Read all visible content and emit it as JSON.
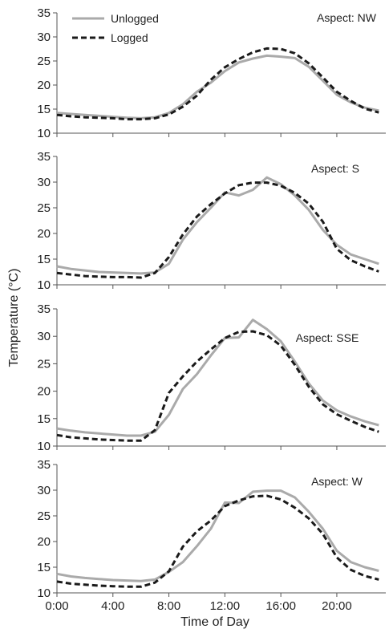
{
  "figure": {
    "ylabel": "Temperature (°C)",
    "xlabel": "Time of Day",
    "legend": {
      "placement": "top-left of first panel",
      "entries": [
        "Unlogged",
        "Logged"
      ]
    },
    "colors": {
      "Unlogged": "#aaaaaa",
      "Logged": "#1a1a1a",
      "axis": "#555555"
    }
  },
  "chart_data": [
    {
      "type": "line",
      "annotation": "Aspect:  NW",
      "ylim": [
        10,
        35
      ],
      "yticks": [
        "10",
        "15",
        "20",
        "25",
        "30",
        "35"
      ],
      "xlim": [
        0,
        23.5
      ],
      "xticks": [
        "0:00",
        "4:00",
        "8:00",
        "12:00",
        "16:00",
        "20:00"
      ],
      "x": [
        0,
        1,
        2,
        3,
        4,
        5,
        6,
        7,
        8,
        9,
        10,
        11,
        12,
        13,
        14,
        15,
        16,
        17,
        18,
        19,
        20,
        21,
        22,
        23
      ],
      "series": [
        {
          "name": "Unlogged",
          "values": [
            14.2,
            14.0,
            13.8,
            13.6,
            13.4,
            13.2,
            13.1,
            13.3,
            14.2,
            16.0,
            18.6,
            20.5,
            22.9,
            24.7,
            25.5,
            26.1,
            25.9,
            25.6,
            23.8,
            20.9,
            18.0,
            16.4,
            15.3,
            14.7
          ]
        },
        {
          "name": "Logged",
          "values": [
            13.8,
            13.5,
            13.3,
            13.2,
            13.1,
            12.9,
            12.9,
            13.1,
            13.9,
            15.5,
            17.8,
            21.1,
            23.7,
            25.4,
            26.8,
            27.6,
            27.5,
            26.6,
            24.5,
            21.6,
            18.6,
            16.7,
            15.1,
            14.3
          ]
        }
      ]
    },
    {
      "type": "line",
      "annotation": "Aspect:  S",
      "ylim": [
        10,
        35
      ],
      "yticks": [
        "10",
        "15",
        "20",
        "25",
        "30",
        "35"
      ],
      "xlim": [
        0,
        23.5
      ],
      "xticks": [
        "0:00",
        "4:00",
        "8:00",
        "12:00",
        "16:00",
        "20:00"
      ],
      "x": [
        0,
        1,
        2,
        3,
        4,
        5,
        6,
        7,
        8,
        9,
        10,
        11,
        12,
        13,
        14,
        15,
        16,
        17,
        18,
        19,
        20,
        21,
        22,
        23
      ],
      "series": [
        {
          "name": "Unlogged",
          "values": [
            13.6,
            13.1,
            12.8,
            12.5,
            12.4,
            12.3,
            12.2,
            12.4,
            14.1,
            18.8,
            22.2,
            25.0,
            28.0,
            27.4,
            28.5,
            30.9,
            29.6,
            27.4,
            24.6,
            20.7,
            17.8,
            15.9,
            15.0,
            14.1
          ]
        },
        {
          "name": "Logged",
          "values": [
            12.3,
            12.0,
            11.7,
            11.6,
            11.5,
            11.5,
            11.4,
            12.3,
            15.4,
            19.8,
            23.3,
            25.7,
            27.8,
            29.4,
            29.9,
            29.9,
            29.3,
            27.9,
            25.8,
            22.3,
            17.0,
            14.8,
            13.6,
            12.6
          ]
        }
      ]
    },
    {
      "type": "line",
      "annotation": "Aspect:  SSE",
      "ylim": [
        10,
        35
      ],
      "yticks": [
        "10",
        "15",
        "20",
        "25",
        "30",
        "35"
      ],
      "xlim": [
        0,
        23.5
      ],
      "xticks": [
        "0:00",
        "4:00",
        "8:00",
        "12:00",
        "16:00",
        "20:00"
      ],
      "x": [
        0,
        1,
        2,
        3,
        4,
        5,
        6,
        7,
        8,
        9,
        10,
        11,
        12,
        13,
        14,
        15,
        16,
        17,
        18,
        19,
        20,
        21,
        22,
        23
      ],
      "series": [
        {
          "name": "Unlogged",
          "values": [
            13.2,
            12.8,
            12.5,
            12.3,
            12.1,
            11.9,
            11.9,
            12.6,
            15.7,
            20.4,
            23.1,
            26.5,
            29.7,
            29.8,
            33.0,
            31.3,
            29.1,
            25.4,
            21.4,
            18.3,
            16.5,
            15.4,
            14.5,
            13.8
          ]
        },
        {
          "name": "Logged",
          "values": [
            12.0,
            11.6,
            11.4,
            11.2,
            11.1,
            11.0,
            11.0,
            12.9,
            19.7,
            22.7,
            25.4,
            27.6,
            29.7,
            30.8,
            30.9,
            30.2,
            28.3,
            24.8,
            20.8,
            17.6,
            15.8,
            14.6,
            13.5,
            12.6
          ]
        }
      ]
    },
    {
      "type": "line",
      "annotation": "Aspect:  W",
      "ylim": [
        10,
        35
      ],
      "yticks": [
        "10",
        "15",
        "20",
        "25",
        "30",
        "35"
      ],
      "xlim": [
        0,
        23.5
      ],
      "xticks": [
        "0:00",
        "4:00",
        "8:00",
        "12:00",
        "16:00",
        "20:00"
      ],
      "x": [
        0,
        1,
        2,
        3,
        4,
        5,
        6,
        7,
        8,
        9,
        10,
        11,
        12,
        13,
        14,
        15,
        16,
        17,
        18,
        19,
        20,
        21,
        22,
        23
      ],
      "series": [
        {
          "name": "Unlogged",
          "values": [
            13.7,
            13.2,
            12.9,
            12.7,
            12.5,
            12.4,
            12.3,
            12.6,
            14.1,
            16.0,
            19.1,
            22.5,
            27.6,
            27.5,
            29.7,
            29.9,
            29.9,
            28.6,
            25.8,
            22.5,
            18.2,
            16.0,
            15.0,
            14.3
          ]
        },
        {
          "name": "Logged",
          "values": [
            12.2,
            11.8,
            11.6,
            11.4,
            11.3,
            11.2,
            11.2,
            12.0,
            14.2,
            19.0,
            22.0,
            24.1,
            26.9,
            28.0,
            28.8,
            28.9,
            28.2,
            26.6,
            24.5,
            21.5,
            16.9,
            14.5,
            13.3,
            12.6
          ]
        }
      ]
    }
  ]
}
